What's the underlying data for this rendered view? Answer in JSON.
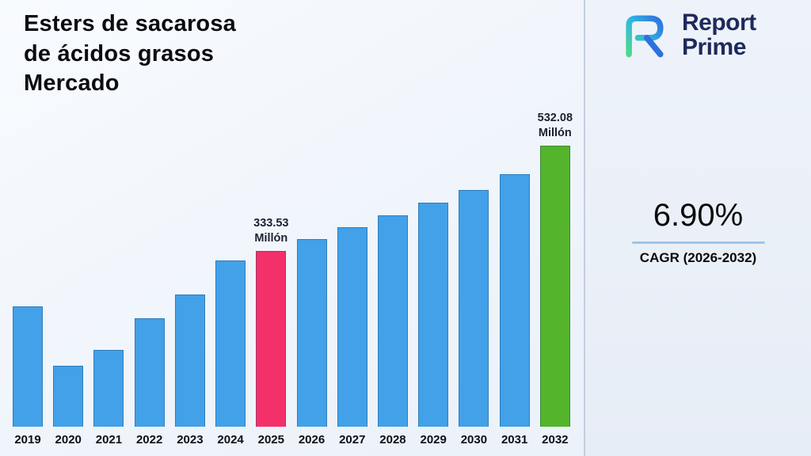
{
  "title": "Esters de sacarosa\nde ácidos grasos\nMercado",
  "brand": {
    "line1": "Report",
    "line2": "Prime",
    "logo_icon": "report-prime-monogram",
    "navy": "#1d2a5c",
    "blue": "#2f6fe0",
    "teal": "#3ec9a7"
  },
  "stats": {
    "cagr_value": "6.90%",
    "cagr_label": "CAGR (2026-2032)",
    "accent_line_color": "#9ec6ea"
  },
  "chart_data": {
    "type": "bar",
    "title": "Esters de sacarosa de ácidos grasos Mercado",
    "unit": "Millón",
    "categories": [
      "2019",
      "2020",
      "2021",
      "2022",
      "2023",
      "2024",
      "2025",
      "2026",
      "2027",
      "2028",
      "2029",
      "2030",
      "2031",
      "2032"
    ],
    "values": [
      228,
      116,
      146,
      206,
      251,
      315,
      333.53,
      356,
      378,
      400,
      424,
      448,
      478,
      532.08
    ],
    "data_labels": {
      "2025": {
        "value": "333.53",
        "unit": "Millón"
      },
      "2032": {
        "value": "532.08",
        "unit": "Millón"
      }
    },
    "colors": {
      "default": "#42a1e8",
      "2025": "#f4306a",
      "2032": "#54b42c"
    },
    "ylim": [
      0,
      560
    ],
    "xlabel": "",
    "ylabel": "",
    "legend": false,
    "grid": false
  }
}
